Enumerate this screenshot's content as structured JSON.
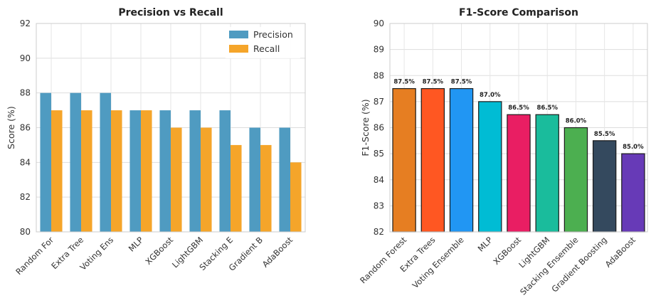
{
  "chart_data": [
    {
      "type": "bar",
      "title": "Precision vs Recall",
      "xlabel": "",
      "ylabel": "Score (%)",
      "ylim": [
        80,
        92
      ],
      "yticks": [
        80,
        82,
        84,
        86,
        88,
        90,
        92
      ],
      "categories": [
        "Random For",
        "Extra Tree",
        "Voting Ens",
        "MLP",
        "XGBoost",
        "LightGBM",
        "Stacking E",
        "Gradient B",
        "AdaBoost"
      ],
      "series": [
        {
          "name": "Precision",
          "color": "#4f9bc1",
          "values": [
            88,
            88,
            88,
            87,
            87,
            87,
            87,
            86,
            86
          ]
        },
        {
          "name": "Recall",
          "color": "#f5a52a",
          "values": [
            87,
            87,
            87,
            87,
            86,
            86,
            85,
            85,
            84
          ]
        }
      ],
      "legend": "top-right",
      "grid": true
    },
    {
      "type": "bar",
      "title": "F1-Score Comparison",
      "xlabel": "",
      "ylabel": "F1-Score (%)",
      "ylim": [
        82,
        90
      ],
      "yticks": [
        82,
        83,
        84,
        85,
        86,
        87,
        88,
        89,
        90
      ],
      "categories": [
        "Random Forest",
        "Extra Trees",
        "Voting Ensemble",
        "MLP",
        "XGBoost",
        "LightGBM",
        "Stacking Ensemble",
        "Gradient Boosting",
        "AdaBoost"
      ],
      "values": [
        87.5,
        87.5,
        87.5,
        87.0,
        86.5,
        86.5,
        86.0,
        85.5,
        85.0
      ],
      "data_labels": [
        "87.5%",
        "87.5%",
        "87.5%",
        "87.0%",
        "86.5%",
        "86.5%",
        "86.0%",
        "85.5%",
        "85.0%"
      ],
      "colors": [
        "#e67e22",
        "#ff5722",
        "#2196f3",
        "#00bcd4",
        "#e91e63",
        "#1abc9c",
        "#4caf50",
        "#34495e",
        "#673ab7"
      ],
      "grid": true
    }
  ]
}
